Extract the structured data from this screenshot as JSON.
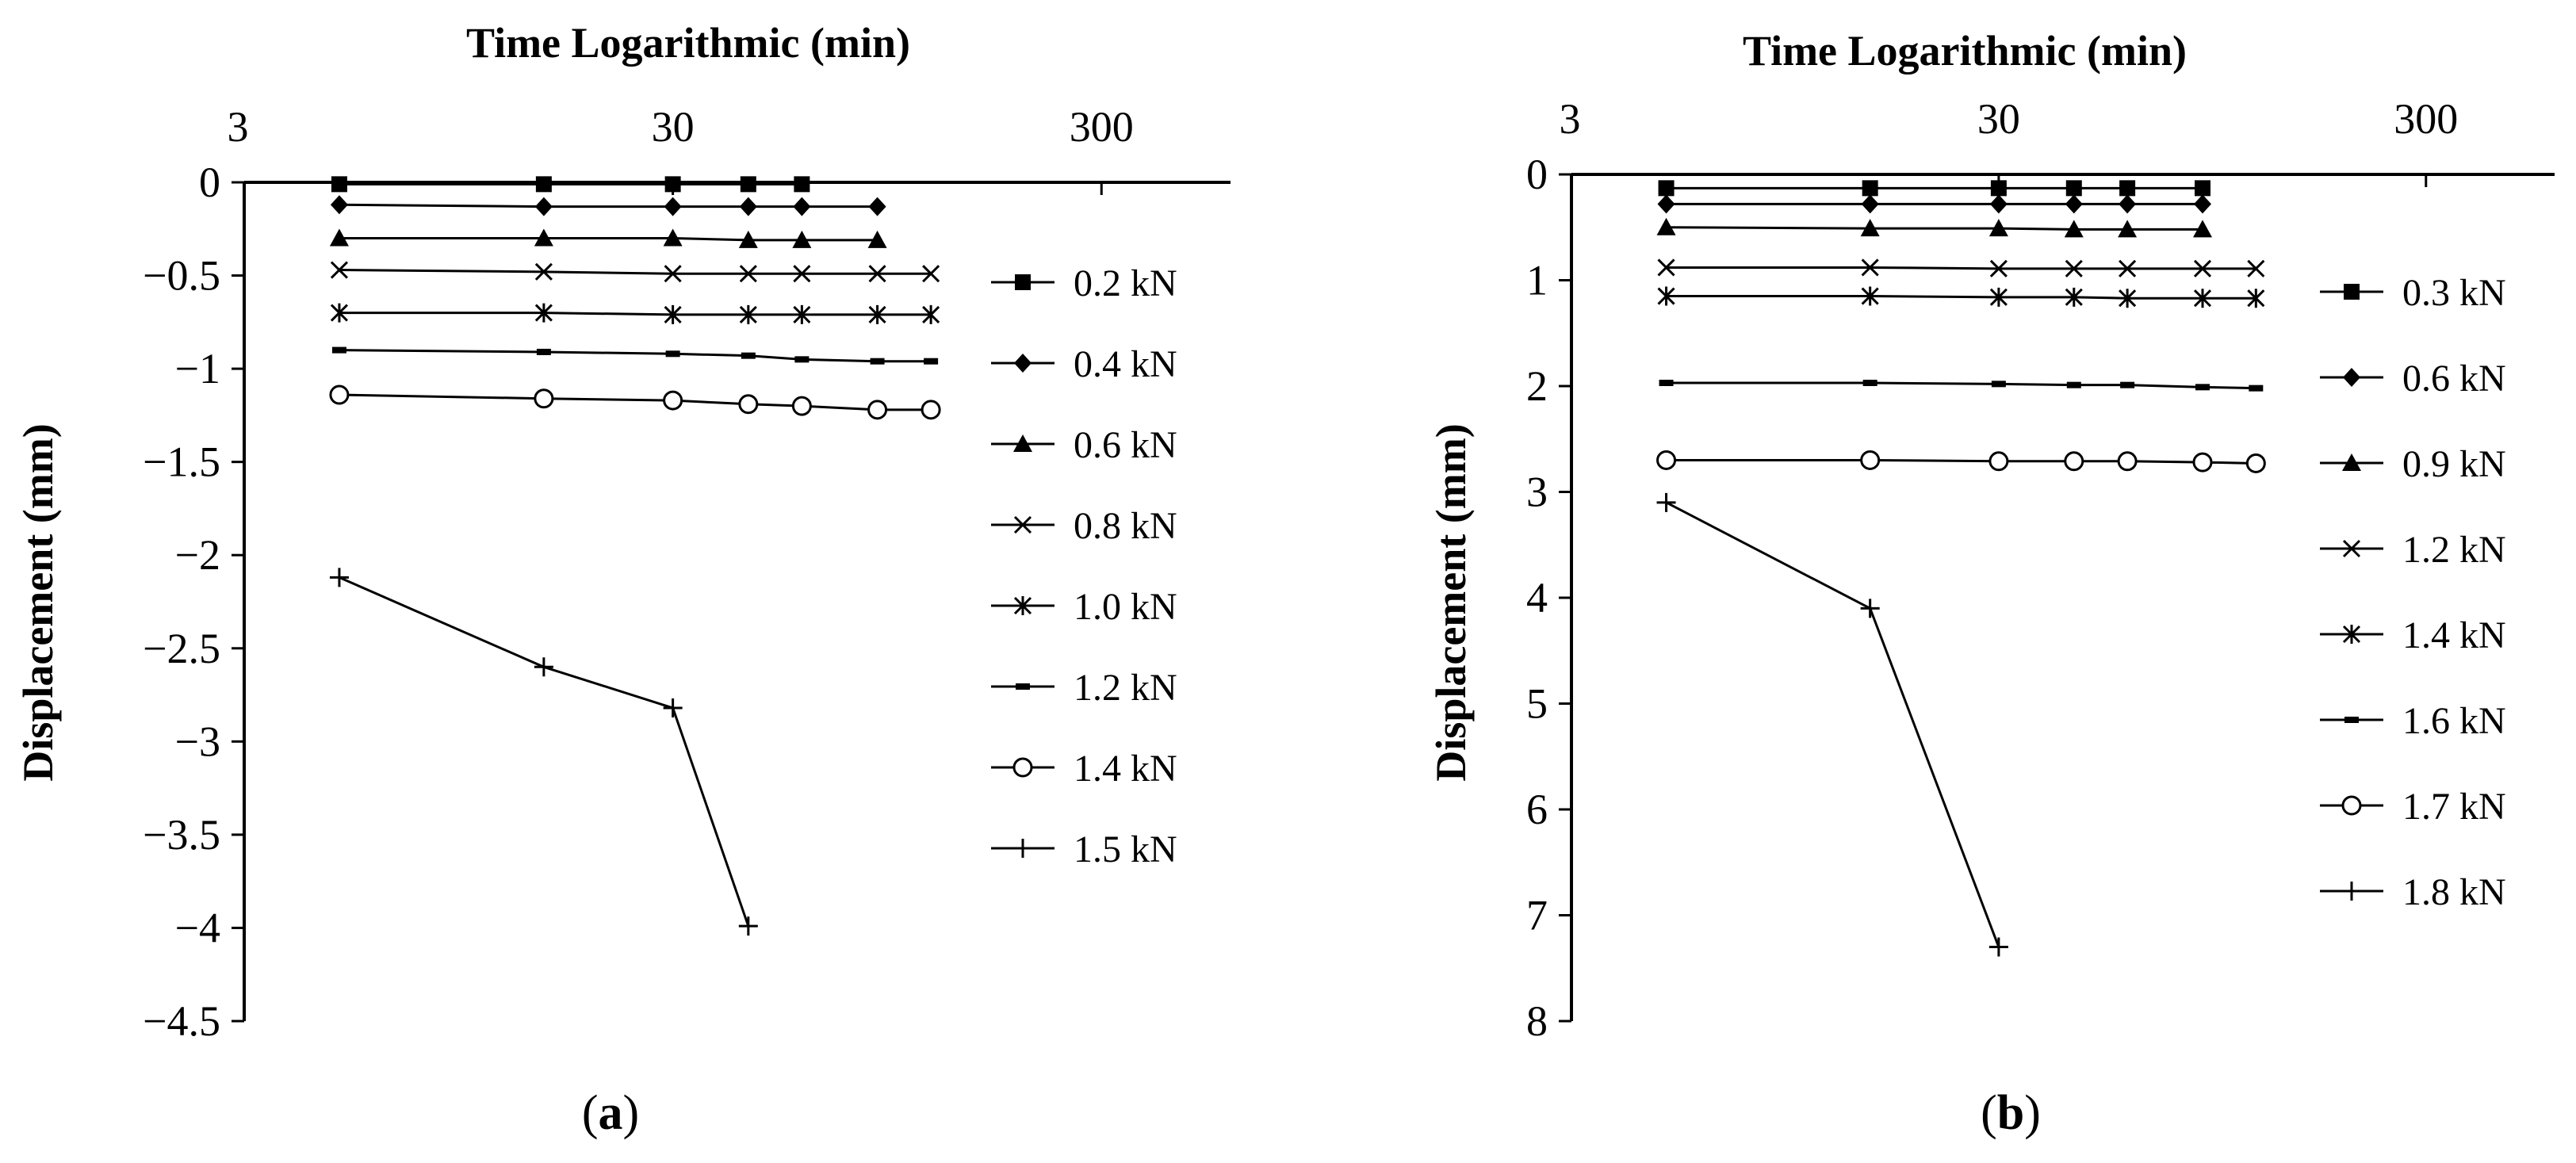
{
  "chart_data": [
    {
      "type": "line",
      "panel_label": "a",
      "title": "Time Logarithmic  (min)",
      "xlabel": "Time Logarithmic  (min)",
      "ylabel": "Displacement (mm)",
      "x_scale": "log",
      "x_axis_position": "top",
      "xlim": [
        3,
        600
      ],
      "x_ticks": [
        3,
        30,
        300
      ],
      "x_tick_labels": [
        "3",
        "30",
        "300"
      ],
      "ylim": [
        -4.5,
        0
      ],
      "y_ticks": [
        0,
        -0.5,
        -1,
        -1.5,
        -2,
        -2.5,
        -3,
        -3.5,
        -4,
        -4.5
      ],
      "y_tick_labels": [
        "0",
        "−0.5",
        "−1",
        "−1.5",
        "−2",
        "−2.5",
        "−3",
        "−3.5",
        "−4",
        "−4.5"
      ],
      "grid": false,
      "legend_position": "right",
      "series": [
        {
          "name": "0.2 kN",
          "marker": "square",
          "x": [
            5,
            15,
            30,
            45,
            60
          ],
          "values": [
            -0.01,
            -0.01,
            -0.01,
            -0.01,
            -0.01
          ]
        },
        {
          "name": "0.4 kN",
          "marker": "diamond",
          "x": [
            5,
            15,
            30,
            45,
            60,
            90
          ],
          "values": [
            -0.12,
            -0.13,
            -0.13,
            -0.13,
            -0.13,
            -0.13
          ]
        },
        {
          "name": "0.6 kN",
          "marker": "triangle",
          "x": [
            5,
            15,
            30,
            45,
            60,
            90
          ],
          "values": [
            -0.3,
            -0.3,
            -0.3,
            -0.31,
            -0.31,
            -0.31
          ]
        },
        {
          "name": "0.8 kN",
          "marker": "x",
          "x": [
            5,
            15,
            30,
            45,
            60,
            90,
            120
          ],
          "values": [
            -0.47,
            -0.48,
            -0.49,
            -0.49,
            -0.49,
            -0.49,
            -0.49
          ]
        },
        {
          "name": "1.0 kN",
          "marker": "asterisk",
          "x": [
            5,
            15,
            30,
            45,
            60,
            90,
            120
          ],
          "values": [
            -0.7,
            -0.7,
            -0.71,
            -0.71,
            -0.71,
            -0.71,
            -0.71
          ]
        },
        {
          "name": "1.2 kN",
          "marker": "dash",
          "x": [
            5,
            15,
            30,
            45,
            60,
            90,
            120
          ],
          "values": [
            -0.9,
            -0.91,
            -0.92,
            -0.93,
            -0.95,
            -0.96,
            -0.96
          ]
        },
        {
          "name": "1.4 kN",
          "marker": "circle",
          "x": [
            5,
            15,
            30,
            45,
            60,
            90,
            120
          ],
          "values": [
            -1.14,
            -1.16,
            -1.17,
            -1.19,
            -1.2,
            -1.22,
            -1.22
          ]
        },
        {
          "name": "1.5 kN",
          "marker": "plus",
          "x": [
            5,
            15,
            30,
            45
          ],
          "values": [
            -2.12,
            -2.6,
            -2.82,
            -3.99
          ]
        }
      ]
    },
    {
      "type": "line",
      "panel_label": "b",
      "title": "Time Logarithmic (min)",
      "xlabel": "Time Logarithmic (min)",
      "ylabel": "Displacement (mm)",
      "x_scale": "log",
      "x_axis_position": "top",
      "xlim": [
        3,
        600
      ],
      "x_ticks": [
        3,
        30,
        300
      ],
      "x_tick_labels": [
        "3",
        "30",
        "300"
      ],
      "ylim": [
        0,
        8
      ],
      "y_inverted": true,
      "y_ticks": [
        0,
        1,
        2,
        3,
        4,
        5,
        6,
        7,
        8
      ],
      "y_tick_labels": [
        "0",
        "1",
        "2",
        "3",
        "4",
        "5",
        "6",
        "7",
        "8"
      ],
      "grid": false,
      "legend_position": "right",
      "series": [
        {
          "name": "0.3 kN",
          "marker": "square",
          "x": [
            5,
            15,
            30,
            45,
            60,
            90
          ],
          "values": [
            0.13,
            0.13,
            0.13,
            0.13,
            0.13,
            0.13
          ]
        },
        {
          "name": "0.6 kN",
          "marker": "diamond",
          "x": [
            5,
            15,
            30,
            45,
            60,
            90
          ],
          "values": [
            0.28,
            0.28,
            0.28,
            0.28,
            0.28,
            0.28
          ]
        },
        {
          "name": "0.9 kN",
          "marker": "triangle",
          "x": [
            5,
            15,
            30,
            45,
            60,
            90
          ],
          "values": [
            0.5,
            0.51,
            0.51,
            0.52,
            0.52,
            0.52
          ]
        },
        {
          "name": "1.2 kN",
          "marker": "x",
          "x": [
            5,
            15,
            30,
            45,
            60,
            90,
            120
          ],
          "values": [
            0.88,
            0.88,
            0.89,
            0.89,
            0.89,
            0.89,
            0.89
          ]
        },
        {
          "name": "1.4 kN",
          "marker": "asterisk",
          "x": [
            5,
            15,
            30,
            45,
            60,
            90,
            120
          ],
          "values": [
            1.15,
            1.15,
            1.16,
            1.16,
            1.17,
            1.17,
            1.17
          ]
        },
        {
          "name": "1.6 kN",
          "marker": "dash",
          "x": [
            5,
            15,
            30,
            45,
            60,
            90,
            120
          ],
          "values": [
            1.97,
            1.97,
            1.98,
            1.99,
            1.99,
            2.01,
            2.02
          ]
        },
        {
          "name": "1.7 kN",
          "marker": "circle",
          "x": [
            5,
            15,
            30,
            45,
            60,
            90,
            120
          ],
          "values": [
            2.7,
            2.7,
            2.71,
            2.71,
            2.71,
            2.72,
            2.73
          ]
        },
        {
          "name": "1.8 kN",
          "marker": "plus",
          "x": [
            5,
            15,
            30
          ],
          "values": [
            3.1,
            4.1,
            7.3
          ]
        }
      ]
    }
  ]
}
